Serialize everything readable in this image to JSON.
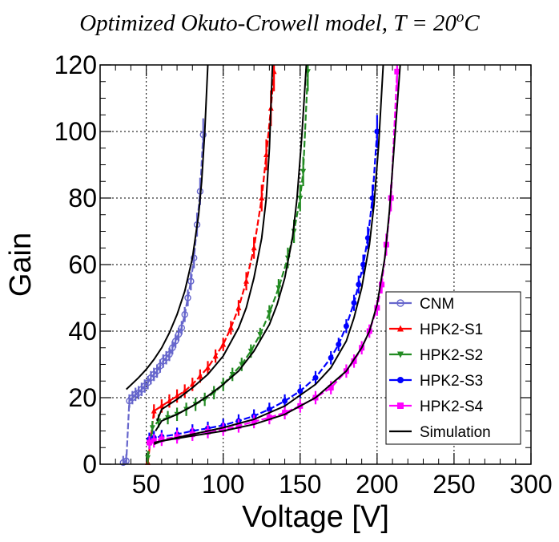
{
  "chart_data": {
    "type": "line",
    "title": {
      "main": "Optimized Okuto-Crowell model, T = 20",
      "sup": "o",
      "unit": "C"
    },
    "xlabel": "Voltage [V]",
    "ylabel": "Gain",
    "xlim": [
      20,
      300
    ],
    "ylim": [
      0,
      120
    ],
    "xticks": [
      50,
      100,
      150,
      200,
      250,
      300
    ],
    "yticks": [
      0,
      20,
      40,
      60,
      80,
      100,
      120
    ],
    "grid": true,
    "legend_position": "bottom-right",
    "series": [
      {
        "name": "CNM",
        "color": "#6666cc",
        "marker": "open-circle",
        "x": [
          35,
          37,
          39,
          41,
          43,
          45,
          47,
          49,
          51,
          53,
          55,
          57,
          59,
          61,
          63,
          65,
          67,
          69,
          71,
          73,
          75,
          77,
          79,
          81,
          83,
          85,
          87
        ],
        "y": [
          0.5,
          1,
          19,
          20,
          21,
          21.5,
          22.5,
          23.5,
          24.5,
          26,
          27,
          28,
          29.5,
          31,
          32,
          33,
          35,
          37,
          39,
          41,
          45,
          50,
          55,
          62,
          72,
          82,
          99
        ]
      },
      {
        "name": "HPK2-S1",
        "color": "#ff0000",
        "marker": "triangle-up",
        "x": [
          51,
          55,
          60,
          65,
          70,
          75,
          80,
          85,
          90,
          95,
          100,
          105,
          110,
          115,
          120,
          125,
          128,
          131,
          133
        ],
        "y": [
          0.5,
          16,
          17.5,
          19,
          20.5,
          22,
          24,
          26.5,
          29,
          32.5,
          36,
          41,
          47,
          55,
          65,
          80,
          93,
          107,
          118
        ]
      },
      {
        "name": "HPK2-S2",
        "color": "#228b22",
        "marker": "triangle-down",
        "x": [
          51,
          54,
          58,
          64,
          70,
          76,
          82,
          88,
          94,
          100,
          106,
          112,
          118,
          124,
          130,
          136,
          142,
          146,
          150,
          152,
          155
        ],
        "y": [
          2,
          11,
          13,
          14,
          15,
          16.5,
          18,
          19.5,
          21.5,
          24,
          27,
          30,
          34,
          39,
          45.5,
          53,
          62,
          70,
          80,
          88,
          118
        ]
      },
      {
        "name": "HPK2-S3",
        "color": "#0000ff",
        "marker": "filled-circle",
        "x": [
          52,
          55,
          60,
          70,
          80,
          90,
          100,
          110,
          120,
          130,
          140,
          150,
          160,
          170,
          175,
          180,
          185,
          188,
          191,
          194,
          197,
          200
        ],
        "y": [
          7.5,
          8,
          8.3,
          9,
          10,
          10.8,
          11.7,
          13,
          14.5,
          16.5,
          19,
          22,
          26,
          32,
          36,
          41.5,
          48.5,
          54,
          60,
          68,
          80,
          100
        ]
      },
      {
        "name": "HPK2-S4",
        "color": "#ff00ff",
        "marker": "filled-square",
        "x": [
          52,
          55,
          60,
          70,
          80,
          90,
          100,
          110,
          120,
          130,
          140,
          150,
          160,
          170,
          180,
          185,
          190,
          195,
          200,
          203,
          206,
          209,
          213
        ],
        "y": [
          6.5,
          7,
          7.5,
          8.2,
          9,
          9.8,
          10.5,
          11.5,
          12.8,
          14,
          15.5,
          17.5,
          20,
          23,
          28,
          31,
          35,
          40,
          47,
          54,
          66,
          80,
          118
        ]
      },
      {
        "name": "Simulation",
        "color": "#000000",
        "marker": "line",
        "curves": [
          {
            "x": [
              37,
              45,
              50,
              55,
              60,
              65,
              70,
              75,
              80,
              84,
              86,
              88,
              90
            ],
            "y": [
              22.5,
              26,
              28.5,
              31.5,
              35,
              39.5,
              45,
              52,
              62,
              75,
              85,
              100,
              120
            ]
          },
          {
            "x": [
              57,
              60,
              70,
              80,
              90,
              100,
              110,
              115,
              120,
              125,
              128,
              130,
              132
            ],
            "y": [
              13,
              16.5,
              19.5,
              23,
              27,
              32.5,
              41,
              47,
              56,
              68,
              80,
              95,
              120
            ]
          },
          {
            "x": [
              56,
              60,
              70,
              80,
              90,
              100,
              110,
              120,
              130,
              135,
              140,
              145,
              148,
              151,
              154
            ],
            "y": [
              10,
              13,
              15,
              17.5,
              20.5,
              24,
              28,
              34,
              42,
              48,
              56,
              68,
              80,
              98,
              120
            ]
          },
          {
            "x": [
              55,
              60,
              80,
              100,
              120,
              140,
              160,
              170,
              180,
              185,
              190,
              195,
              198,
              201,
              204
            ],
            "y": [
              6,
              7,
              9,
              11,
              13.5,
              17.5,
              24,
              29,
              37,
              44,
              53,
              66,
              78,
              96,
              120
            ]
          },
          {
            "x": [
              55,
              60,
              80,
              100,
              120,
              140,
              160,
              180,
              190,
              195,
              200,
              205,
              208,
              211,
              215
            ],
            "y": [
              6.5,
              7,
              8.5,
              10,
              12,
              15,
              20,
              28,
              35,
              40,
              48,
              62,
              76,
              95,
              120
            ]
          }
        ]
      }
    ]
  }
}
